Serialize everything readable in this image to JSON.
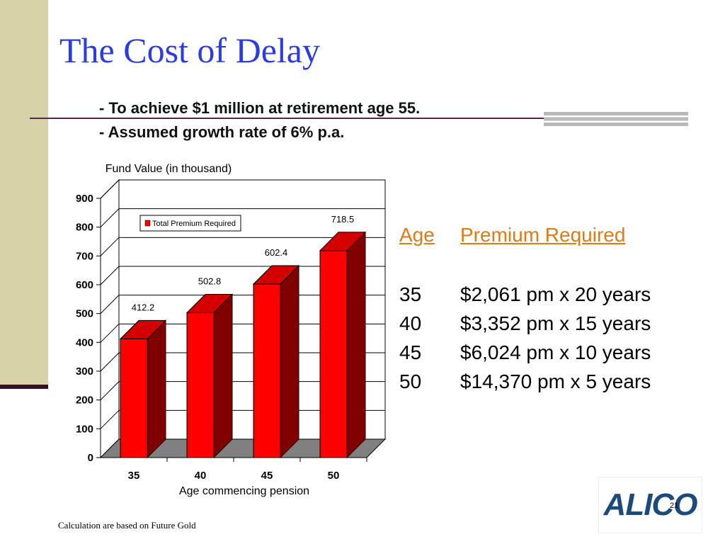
{
  "slide": {
    "title": "The Cost of Delay",
    "subtitle_lines": [
      "- To achieve $1 million at retirement age 55.",
      "- Assumed growth rate of 6% p.a."
    ],
    "footnote": "Calculation are based on Future Gold",
    "page_number": "21",
    "logo_text": "ALICO"
  },
  "colors": {
    "title": "#2b3de0",
    "accent": "#e07a12",
    "bar_front": "#ff0000",
    "bar_side": "#800000",
    "bar_top": "#d40000",
    "floor": "#808080",
    "side_bar": "#d6d3a8"
  },
  "chart_data": {
    "type": "bar",
    "categories": [
      "35",
      "40",
      "45",
      "50"
    ],
    "series": [
      {
        "name": "Total Premium Required",
        "values": [
          412.2,
          502.8,
          602.4,
          718.5
        ]
      }
    ],
    "data_labels": [
      "412.2",
      "502.8",
      "602.4",
      "718.5"
    ],
    "y_ticks": [
      "0",
      "100",
      "200",
      "300",
      "400",
      "500",
      "600",
      "700",
      "800",
      "900"
    ],
    "ylim": [
      0,
      900
    ],
    "ylabel": "Fund Value (in thousand)",
    "xlabel": "Age commencing pension",
    "legend_position": "top-left",
    "grid": true,
    "style": "3d"
  },
  "premium_table": {
    "headers": {
      "age": "Age",
      "premium": "Premium Required"
    },
    "rows": [
      {
        "age": "35",
        "premium": "$2,061 pm x 20 years"
      },
      {
        "age": "40",
        "premium": "$3,352 pm x 15 years"
      },
      {
        "age": "45",
        "premium": "$6,024 pm x 10 years"
      },
      {
        "age": "50",
        "premium": "$14,370 pm x 5 years"
      }
    ]
  }
}
